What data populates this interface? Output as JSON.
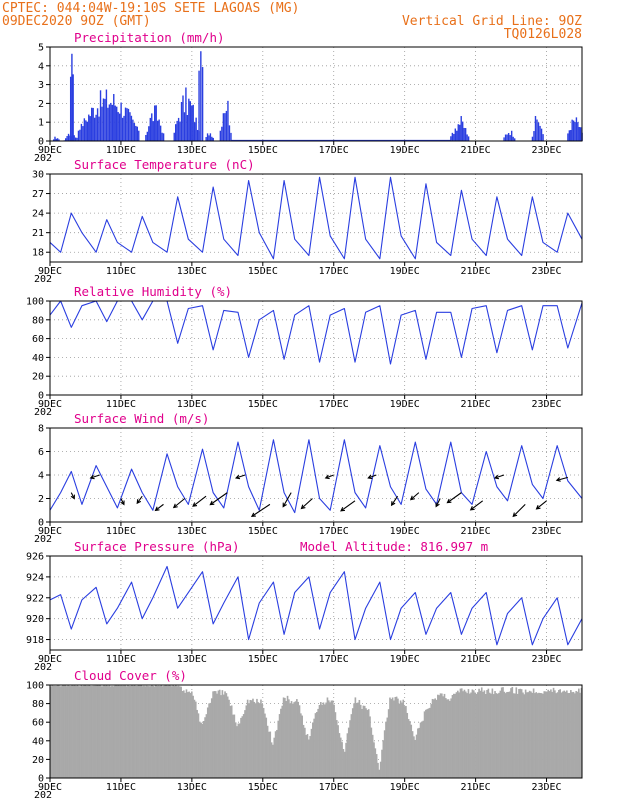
{
  "header": {
    "line1": "CPTEC:   044:04W-19:10S   SETE LAGOAS (MG)",
    "line2": "09DEC2020 9OZ (GMT)",
    "right1": "Vertical Grid Line: 9OZ",
    "right2": "TQ0126L028"
  },
  "colors": {
    "header": "#e8701a",
    "panel_title": "#e0008c",
    "line": "#2a3ee0",
    "bar": "#2a3ee0",
    "cloud": "#a9a9a9"
  },
  "x_axis": {
    "tick_labels": [
      "9DEC",
      "11DEC",
      "13DEC",
      "15DEC",
      "17DEC",
      "19DEC",
      "21DEC",
      "23DEC"
    ],
    "tick_days": [
      0,
      2,
      4,
      6,
      8,
      10,
      12,
      14
    ],
    "range_days": [
      0,
      15
    ],
    "year_fragment": "202"
  },
  "chart_data": [
    {
      "type": "bar",
      "title": "Precipitation (mm/h)",
      "ylim": [
        0,
        5
      ],
      "yticks": [
        "0",
        "1",
        "2",
        "3",
        "4",
        "5"
      ],
      "bursts": [
        {
          "x": [
            0.1,
            0.25
          ],
          "y": [
            0,
            0.3
          ]
        },
        {
          "x": [
            0.4,
            0.8
          ],
          "y": [
            0,
            0.6
          ]
        },
        {
          "x": [
            0.58,
            0.65
          ],
          "y": [
            3,
            5
          ]
        },
        {
          "x": [
            0.8,
            2.5
          ],
          "y": [
            0.5,
            2.9
          ]
        },
        {
          "x": [
            2.7,
            3.2
          ],
          "y": [
            0.2,
            2.0
          ]
        },
        {
          "x": [
            3.5,
            4.2
          ],
          "y": [
            0.3,
            2.9
          ]
        },
        {
          "x": [
            4.2,
            4.3
          ],
          "y": [
            3.5,
            4.8
          ]
        },
        {
          "x": [
            4.4,
            4.6
          ],
          "y": [
            0.1,
            0.6
          ]
        },
        {
          "x": [
            4.8,
            5.1
          ],
          "y": [
            0.2,
            3.0
          ]
        },
        {
          "x": [
            11.3,
            11.8
          ],
          "y": [
            0.1,
            1.4
          ]
        },
        {
          "x": [
            12.8,
            13.1
          ],
          "y": [
            0.1,
            0.7
          ]
        },
        {
          "x": [
            13.6,
            13.9
          ],
          "y": [
            0.1,
            1.6
          ]
        },
        {
          "x": [
            14.6,
            15.0
          ],
          "y": [
            0.3,
            1.4
          ]
        }
      ]
    },
    {
      "type": "line",
      "title": "Surface Temperature (nC)",
      "ylim": [
        16.5,
        30
      ],
      "yticks": [
        "18",
        "21",
        "24",
        "27",
        "30"
      ],
      "x": [
        0,
        0.3,
        0.6,
        0.9,
        1.3,
        1.6,
        1.9,
        2.3,
        2.6,
        2.9,
        3.3,
        3.6,
        3.9,
        4.3,
        4.6,
        4.9,
        5.3,
        5.6,
        5.9,
        6.3,
        6.6,
        6.9,
        7.3,
        7.6,
        7.9,
        8.3,
        8.6,
        8.9,
        9.3,
        9.6,
        9.9,
        10.3,
        10.6,
        10.9,
        11.3,
        11.6,
        11.9,
        12.3,
        12.6,
        12.9,
        13.3,
        13.6,
        13.9,
        14.3,
        14.6,
        15.0
      ],
      "y": [
        19.5,
        18.0,
        24.0,
        21.0,
        18.0,
        23.0,
        19.5,
        18.0,
        23.5,
        19.5,
        18.0,
        26.5,
        20.0,
        18.0,
        28.0,
        20.0,
        17.5,
        29.0,
        21.0,
        17.0,
        29.0,
        20.0,
        17.5,
        29.5,
        20.5,
        17.0,
        29.5,
        20.0,
        17.0,
        29.5,
        20.5,
        17.0,
        28.5,
        19.5,
        17.5,
        27.5,
        20.0,
        17.5,
        26.5,
        20.0,
        17.5,
        26.5,
        19.5,
        18.0,
        24.0,
        20.0
      ]
    },
    {
      "type": "line",
      "title": "Relative Humidity (%)",
      "ylim": [
        0,
        100
      ],
      "yticks": [
        "0",
        "20",
        "40",
        "60",
        "80",
        "100"
      ],
      "x": [
        0,
        0.3,
        0.6,
        0.9,
        1.3,
        1.6,
        1.9,
        2.3,
        2.6,
        2.9,
        3.3,
        3.6,
        3.9,
        4.3,
        4.6,
        4.9,
        5.3,
        5.6,
        5.9,
        6.3,
        6.6,
        6.9,
        7.3,
        7.6,
        7.9,
        8.3,
        8.6,
        8.9,
        9.3,
        9.6,
        9.9,
        10.3,
        10.6,
        10.9,
        11.3,
        11.6,
        11.9,
        12.3,
        12.6,
        12.9,
        13.3,
        13.6,
        13.9,
        14.3,
        14.6,
        15.0
      ],
      "y": [
        85,
        100,
        72,
        95,
        100,
        78,
        100,
        100,
        80,
        100,
        100,
        55,
        92,
        95,
        48,
        90,
        88,
        40,
        80,
        90,
        38,
        85,
        95,
        35,
        85,
        92,
        35,
        88,
        95,
        33,
        85,
        90,
        38,
        88,
        88,
        40,
        92,
        95,
        45,
        90,
        95,
        48,
        95,
        95,
        50,
        98
      ]
    },
    {
      "type": "line",
      "title": "Surface Wind (m/s)",
      "ylim": [
        0,
        8
      ],
      "yticks": [
        "0",
        "2",
        "4",
        "6",
        "8"
      ],
      "x": [
        0,
        0.3,
        0.6,
        0.9,
        1.3,
        1.6,
        1.9,
        2.3,
        2.6,
        2.9,
        3.3,
        3.6,
        3.9,
        4.3,
        4.6,
        4.9,
        5.3,
        5.6,
        5.9,
        6.3,
        6.6,
        6.9,
        7.3,
        7.6,
        7.9,
        8.3,
        8.6,
        8.9,
        9.3,
        9.6,
        9.9,
        10.3,
        10.6,
        10.9,
        11.3,
        11.6,
        11.9,
        12.3,
        12.6,
        12.9,
        13.3,
        13.6,
        13.9,
        14.3,
        14.6,
        15.0
      ],
      "y": [
        1.0,
        2.5,
        4.3,
        1.5,
        4.8,
        3.0,
        1.2,
        4.5,
        2.5,
        1.0,
        5.8,
        3.0,
        1.5,
        6.2,
        2.5,
        1.2,
        6.8,
        3.0,
        1.0,
        7.0,
        2.5,
        0.8,
        7.0,
        2.0,
        1.0,
        7.0,
        2.5,
        1.2,
        6.5,
        3.0,
        1.5,
        6.8,
        2.8,
        1.5,
        6.8,
        2.5,
        1.5,
        6.0,
        3.0,
        1.8,
        6.5,
        3.2,
        2.0,
        6.5,
        3.5,
        2.0
      ],
      "vectors": [
        {
          "x": 0.6,
          "y": 2.5,
          "u": 3,
          "v": 6
        },
        {
          "x": 1.4,
          "y": 4.0,
          "u": -9,
          "v": 3
        },
        {
          "x": 2.0,
          "y": 2.0,
          "u": 3,
          "v": 6
        },
        {
          "x": 2.6,
          "y": 2.2,
          "u": -5,
          "v": 7
        },
        {
          "x": 3.2,
          "y": 1.5,
          "u": -8,
          "v": 6
        },
        {
          "x": 3.8,
          "y": 2.0,
          "u": -11,
          "v": 9
        },
        {
          "x": 4.4,
          "y": 2.2,
          "u": -13,
          "v": 10
        },
        {
          "x": 5.0,
          "y": 2.5,
          "u": -17,
          "v": 12
        },
        {
          "x": 5.5,
          "y": 4.0,
          "u": -9,
          "v": 3
        },
        {
          "x": 6.2,
          "y": 1.5,
          "u": -18,
          "v": 12
        },
        {
          "x": 6.8,
          "y": 2.5,
          "u": -8,
          "v": 14
        },
        {
          "x": 7.4,
          "y": 2.0,
          "u": -11,
          "v": 10
        },
        {
          "x": 8.0,
          "y": 4.0,
          "u": -8,
          "v": 3
        },
        {
          "x": 8.6,
          "y": 1.8,
          "u": -14,
          "v": 10
        },
        {
          "x": 9.2,
          "y": 4.0,
          "u": -8,
          "v": 3
        },
        {
          "x": 9.8,
          "y": 2.2,
          "u": -6,
          "v": 9
        },
        {
          "x": 10.4,
          "y": 2.5,
          "u": -8,
          "v": 7
        },
        {
          "x": 11.0,
          "y": 2.0,
          "u": -4,
          "v": 8
        },
        {
          "x": 11.6,
          "y": 2.5,
          "u": -14,
          "v": 10
        },
        {
          "x": 12.2,
          "y": 1.8,
          "u": -12,
          "v": 9
        },
        {
          "x": 12.8,
          "y": 4.0,
          "u": -9,
          "v": 3
        },
        {
          "x": 13.4,
          "y": 1.5,
          "u": -12,
          "v": 12
        },
        {
          "x": 14.0,
          "y": 1.8,
          "u": -10,
          "v": 8
        },
        {
          "x": 14.6,
          "y": 3.8,
          "u": -11,
          "v": 3
        }
      ]
    },
    {
      "type": "line",
      "title": "Surface Pressure (hPa)",
      "subtitle": "Model Altitude: 816.997 m",
      "ylim": [
        917,
        926
      ],
      "yticks": [
        "918",
        "920",
        "922",
        "924",
        "926"
      ],
      "x": [
        0,
        0.3,
        0.6,
        0.9,
        1.3,
        1.6,
        1.9,
        2.3,
        2.6,
        2.9,
        3.3,
        3.6,
        3.9,
        4.3,
        4.6,
        4.9,
        5.3,
        5.6,
        5.9,
        6.3,
        6.6,
        6.9,
        7.3,
        7.6,
        7.9,
        8.3,
        8.6,
        8.9,
        9.3,
        9.6,
        9.9,
        10.3,
        10.6,
        10.9,
        11.3,
        11.6,
        11.9,
        12.3,
        12.6,
        12.9,
        13.3,
        13.6,
        13.9,
        14.3,
        14.6,
        15.0
      ],
      "y": [
        921.8,
        922.3,
        919.0,
        921.8,
        923.0,
        919.5,
        921.0,
        923.5,
        920.0,
        922.0,
        925.0,
        921.0,
        922.5,
        924.5,
        919.5,
        921.5,
        924.0,
        918.0,
        921.5,
        923.5,
        918.5,
        922.5,
        924.0,
        919.0,
        922.5,
        924.5,
        918.0,
        921.0,
        923.5,
        918.0,
        921.0,
        922.5,
        918.5,
        921.0,
        922.5,
        918.5,
        921.0,
        922.5,
        917.5,
        920.5,
        922.0,
        917.5,
        920.0,
        922.0,
        917.5,
        920.0
      ]
    },
    {
      "type": "area",
      "title": "Cloud Cover (%)",
      "ylim": [
        0,
        100
      ],
      "yticks": [
        "0",
        "20",
        "40",
        "60",
        "80",
        "100"
      ],
      "x": [
        0,
        0.5,
        1.0,
        1.5,
        2.0,
        2.5,
        3.0,
        3.5,
        4.0,
        4.3,
        4.6,
        5.0,
        5.3,
        5.6,
        6.0,
        6.3,
        6.6,
        7.0,
        7.3,
        7.6,
        8.0,
        8.3,
        8.6,
        9.0,
        9.3,
        9.6,
        10.0,
        10.3,
        10.6,
        11.0,
        11.3,
        11.6,
        12.0,
        12.5,
        13.0,
        13.5,
        14.0,
        14.5,
        15.0
      ],
      "y": [
        100,
        100,
        100,
        100,
        100,
        100,
        100,
        100,
        98,
        60,
        95,
        95,
        60,
        88,
        85,
        40,
        90,
        85,
        45,
        85,
        90,
        30,
        90,
        75,
        15,
        90,
        85,
        45,
        75,
        95,
        90,
        98,
        98,
        98,
        98,
        98,
        98,
        98,
        98
      ]
    }
  ]
}
